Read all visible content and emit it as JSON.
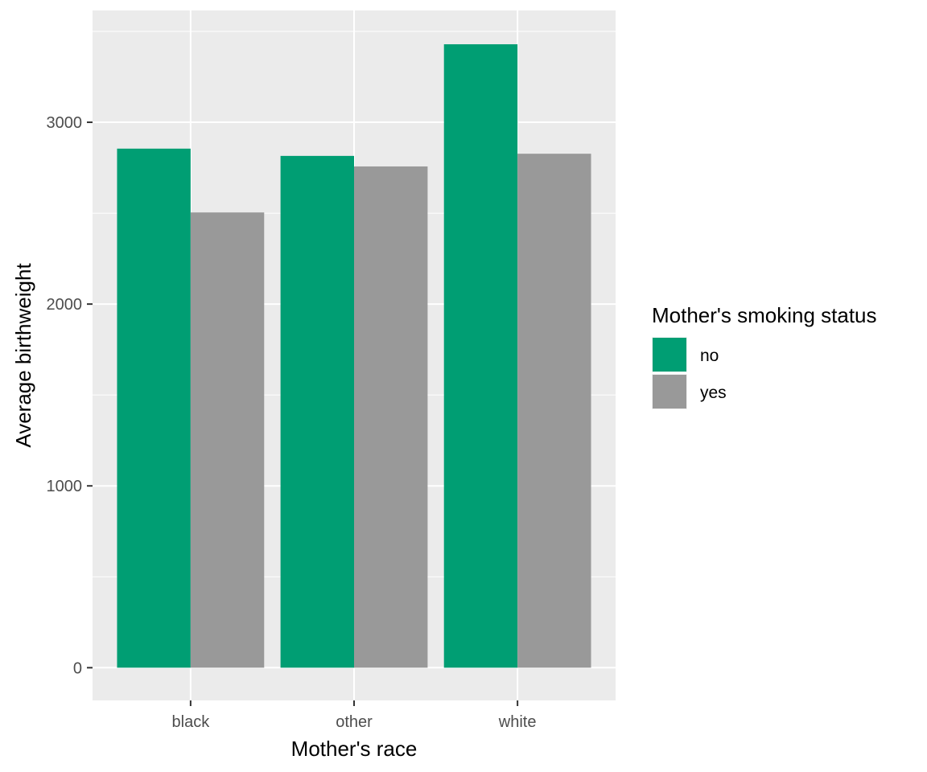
{
  "chart_data": {
    "type": "bar",
    "xlabel": "Mother's race",
    "ylabel": "Average birthweight",
    "categories": [
      "black",
      "other",
      "white"
    ],
    "series": [
      {
        "name": "no",
        "color": "#009E73",
        "values": [
          2855,
          2815,
          3429
        ]
      },
      {
        "name": "yes",
        "color": "#999999",
        "values": [
          2504,
          2757,
          2827
        ]
      }
    ],
    "ylim": [
      -180,
      3615
    ],
    "yticks": [
      0,
      1000,
      2000,
      3000
    ],
    "grid": true,
    "legend": {
      "title": "Mother's smoking status",
      "position": "right"
    },
    "background": "#EBEBEB"
  }
}
